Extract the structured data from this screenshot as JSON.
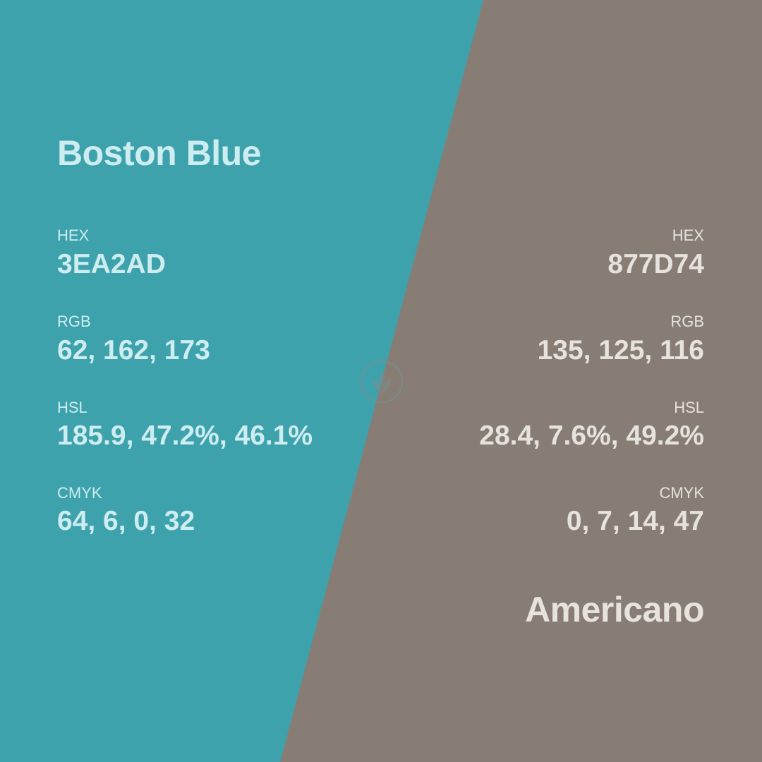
{
  "colors": {
    "left_bg": "#3EA2AD",
    "right_bg": "#877D74",
    "left_text": "#CDEDF0",
    "right_text": "#E6E2DE"
  },
  "left": {
    "name": "Boston Blue",
    "hex_label": "HEX",
    "hex_value": "3EA2AD",
    "rgb_label": "RGB",
    "rgb_value": "62, 162, 173",
    "hsl_label": "HSL",
    "hsl_value": "185.9, 47.2%, 46.1%",
    "cmyk_label": "CMYK",
    "cmyk_value": "64, 6, 0, 32"
  },
  "right": {
    "name": "Americano",
    "hex_label": "HEX",
    "hex_value": "877D74",
    "rgb_label": "RGB",
    "rgb_value": "135, 125, 116",
    "hsl_label": "HSL",
    "hsl_value": "28.4, 7.6%, 49.2%",
    "cmyk_label": "CMYK",
    "cmyk_value": "0, 7, 14, 47"
  },
  "logo_icon": "leaf-logo-icon"
}
